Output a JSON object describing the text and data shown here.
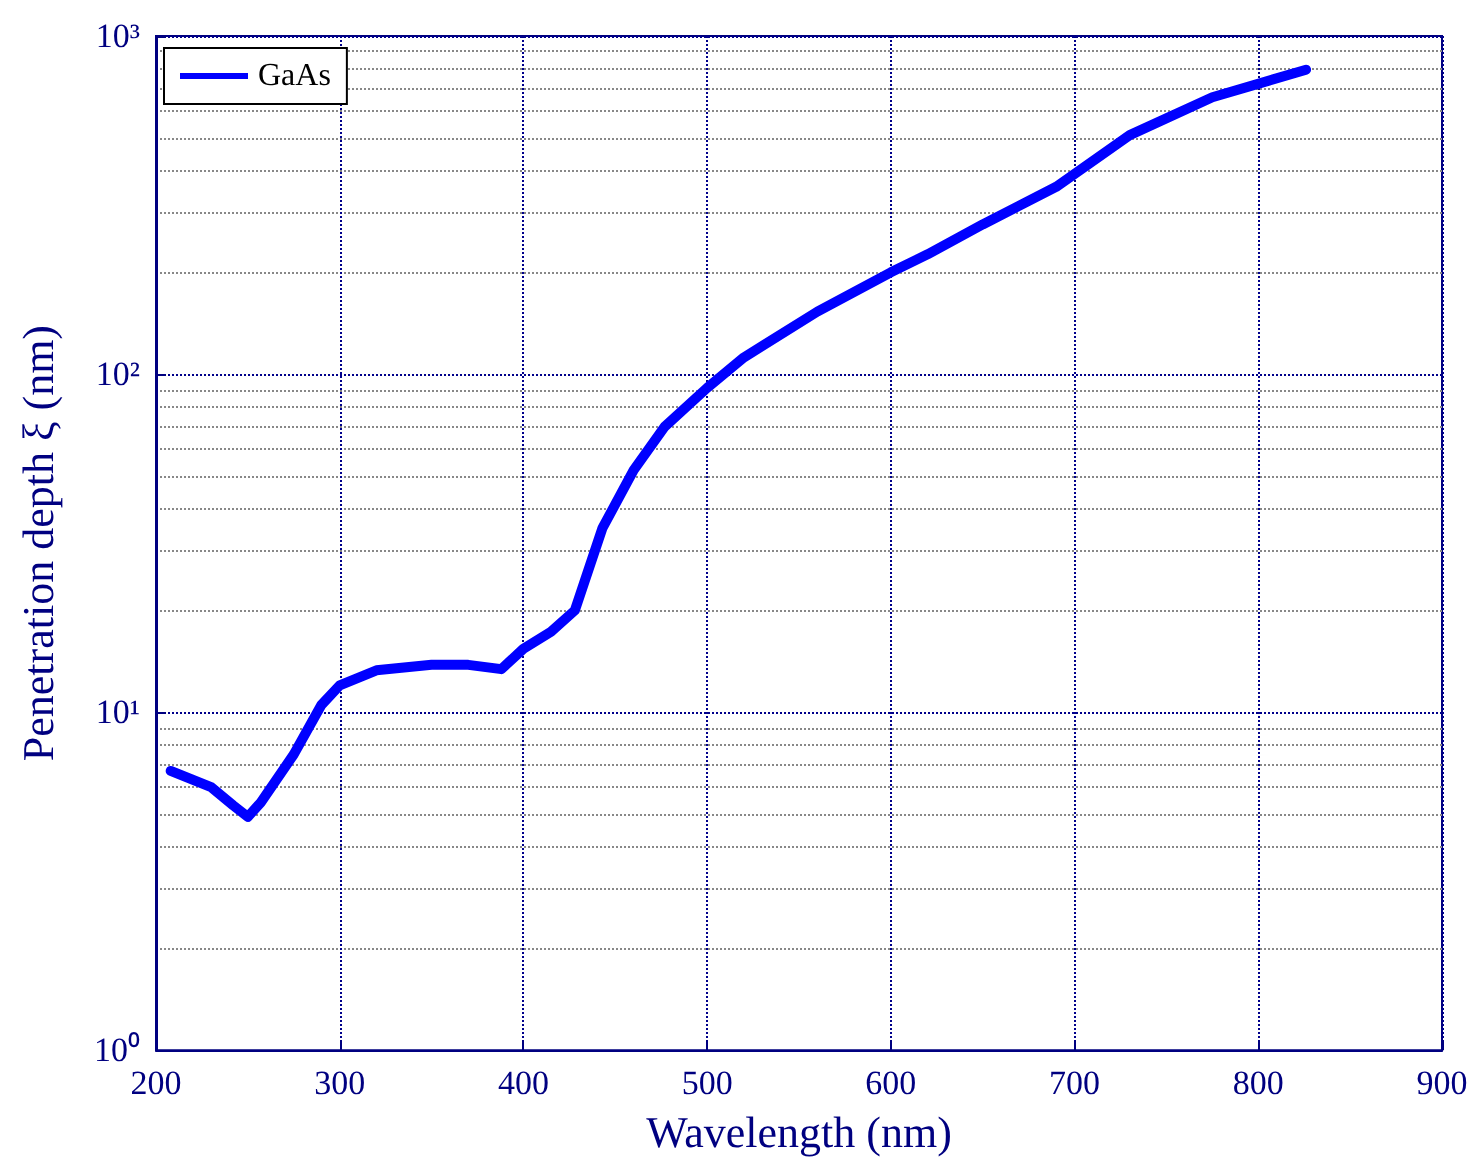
{
  "chart_data": {
    "type": "line",
    "xlabel": "Wavelength (nm)",
    "ylabel": "Penetration depth ξ (nm)",
    "series": [
      {
        "name": "GaAs",
        "color": "#0000ff",
        "x": [
          208,
          230,
          242,
          250,
          257,
          275,
          290,
          300,
          320,
          350,
          370,
          388,
          400,
          415,
          428,
          443,
          460,
          477,
          500,
          520,
          560,
          600,
          620,
          650,
          690,
          730,
          775,
          826
        ],
        "values": [
          6.7,
          6.0,
          5.3,
          4.9,
          5.4,
          7.5,
          10.5,
          12,
          13.3,
          13.8,
          13.8,
          13.4,
          15.4,
          17.3,
          20,
          35,
          52,
          70,
          91,
          112,
          153,
          200,
          226,
          277,
          358,
          509,
          659,
          795
        ]
      }
    ],
    "xlim": [
      200,
      900
    ],
    "xticks": [
      200,
      300,
      400,
      500,
      600,
      700,
      800,
      900
    ],
    "ylim": [
      1,
      1000
    ],
    "yticks": [
      {
        "value": 1,
        "label": "10⁰"
      },
      {
        "value": 10,
        "label": "10¹"
      },
      {
        "value": 100,
        "label": "10²"
      },
      {
        "value": 1000,
        "label": "10³"
      }
    ],
    "log": "y",
    "grid": true,
    "legend": "top left",
    "line_style": "solid",
    "marker": "none"
  }
}
